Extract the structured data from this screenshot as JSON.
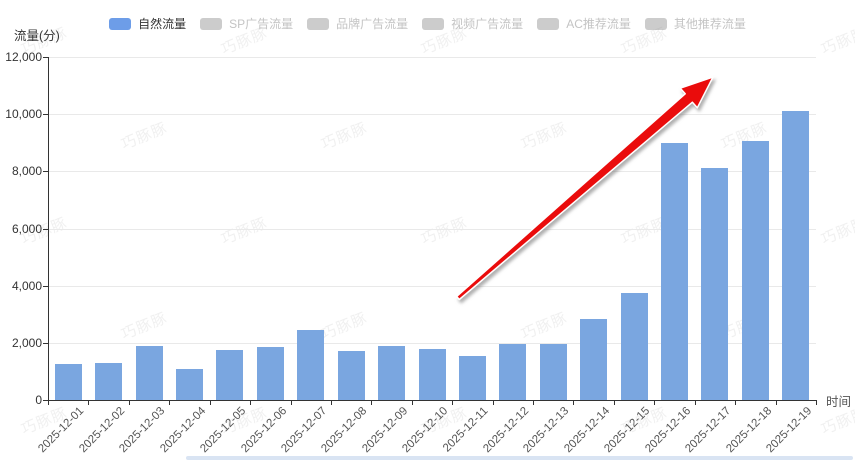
{
  "chart_data": {
    "type": "bar",
    "title": "",
    "y_axis_title": "流量(分)",
    "x_axis_title": "时间",
    "categories": [
      "2025-12-01",
      "2025-12-02",
      "2025-12-03",
      "2025-12-04",
      "2025-12-05",
      "2025-12-06",
      "2025-12-07",
      "2025-12-08",
      "2025-12-09",
      "2025-12-10",
      "2025-12-11",
      "2025-12-12",
      "2025-12-13",
      "2025-12-14",
      "2025-12-15",
      "2025-12-16",
      "2025-12-17",
      "2025-12-18",
      "2025-12-19"
    ],
    "series": [
      {
        "name": "自然流量",
        "color": "#7aa6e0",
        "values": [
          1250,
          1300,
          1900,
          1100,
          1750,
          1850,
          2450,
          1700,
          1900,
          1800,
          1550,
          1950,
          1950,
          2850,
          3750,
          9000,
          8100,
          9050,
          10100
        ]
      }
    ],
    "ylim": [
      0,
      12000
    ],
    "y_ticks": [
      "0",
      "2,000",
      "4,000",
      "6,000",
      "8,000",
      "10,000",
      "12,000"
    ],
    "grid": true,
    "legend_position": "top",
    "annotation": "red upward trend arrow from 2025-12-11 area toward top right"
  },
  "legend": {
    "items": [
      {
        "label": "自然流量",
        "active": true,
        "swatch": "#6d9de8"
      },
      {
        "label": "SP广告流量",
        "active": false,
        "swatch": "#cccccc"
      },
      {
        "label": "品牌广告流量",
        "active": false,
        "swatch": "#cccccc"
      },
      {
        "label": "视频广告流量",
        "active": false,
        "swatch": "#cccccc"
      },
      {
        "label": "AC推荐流量",
        "active": false,
        "swatch": "#cccccc"
      },
      {
        "label": "其他推荐流量",
        "active": false,
        "swatch": "#cccccc"
      }
    ]
  },
  "watermark": {
    "text": "巧豚豚"
  },
  "colors": {
    "bar": "#7aa6e0",
    "axis": "#333333",
    "grid": "#e9e9e9",
    "arrow": "#ea0c0c",
    "inactive_legend": "#c4c4c4"
  }
}
